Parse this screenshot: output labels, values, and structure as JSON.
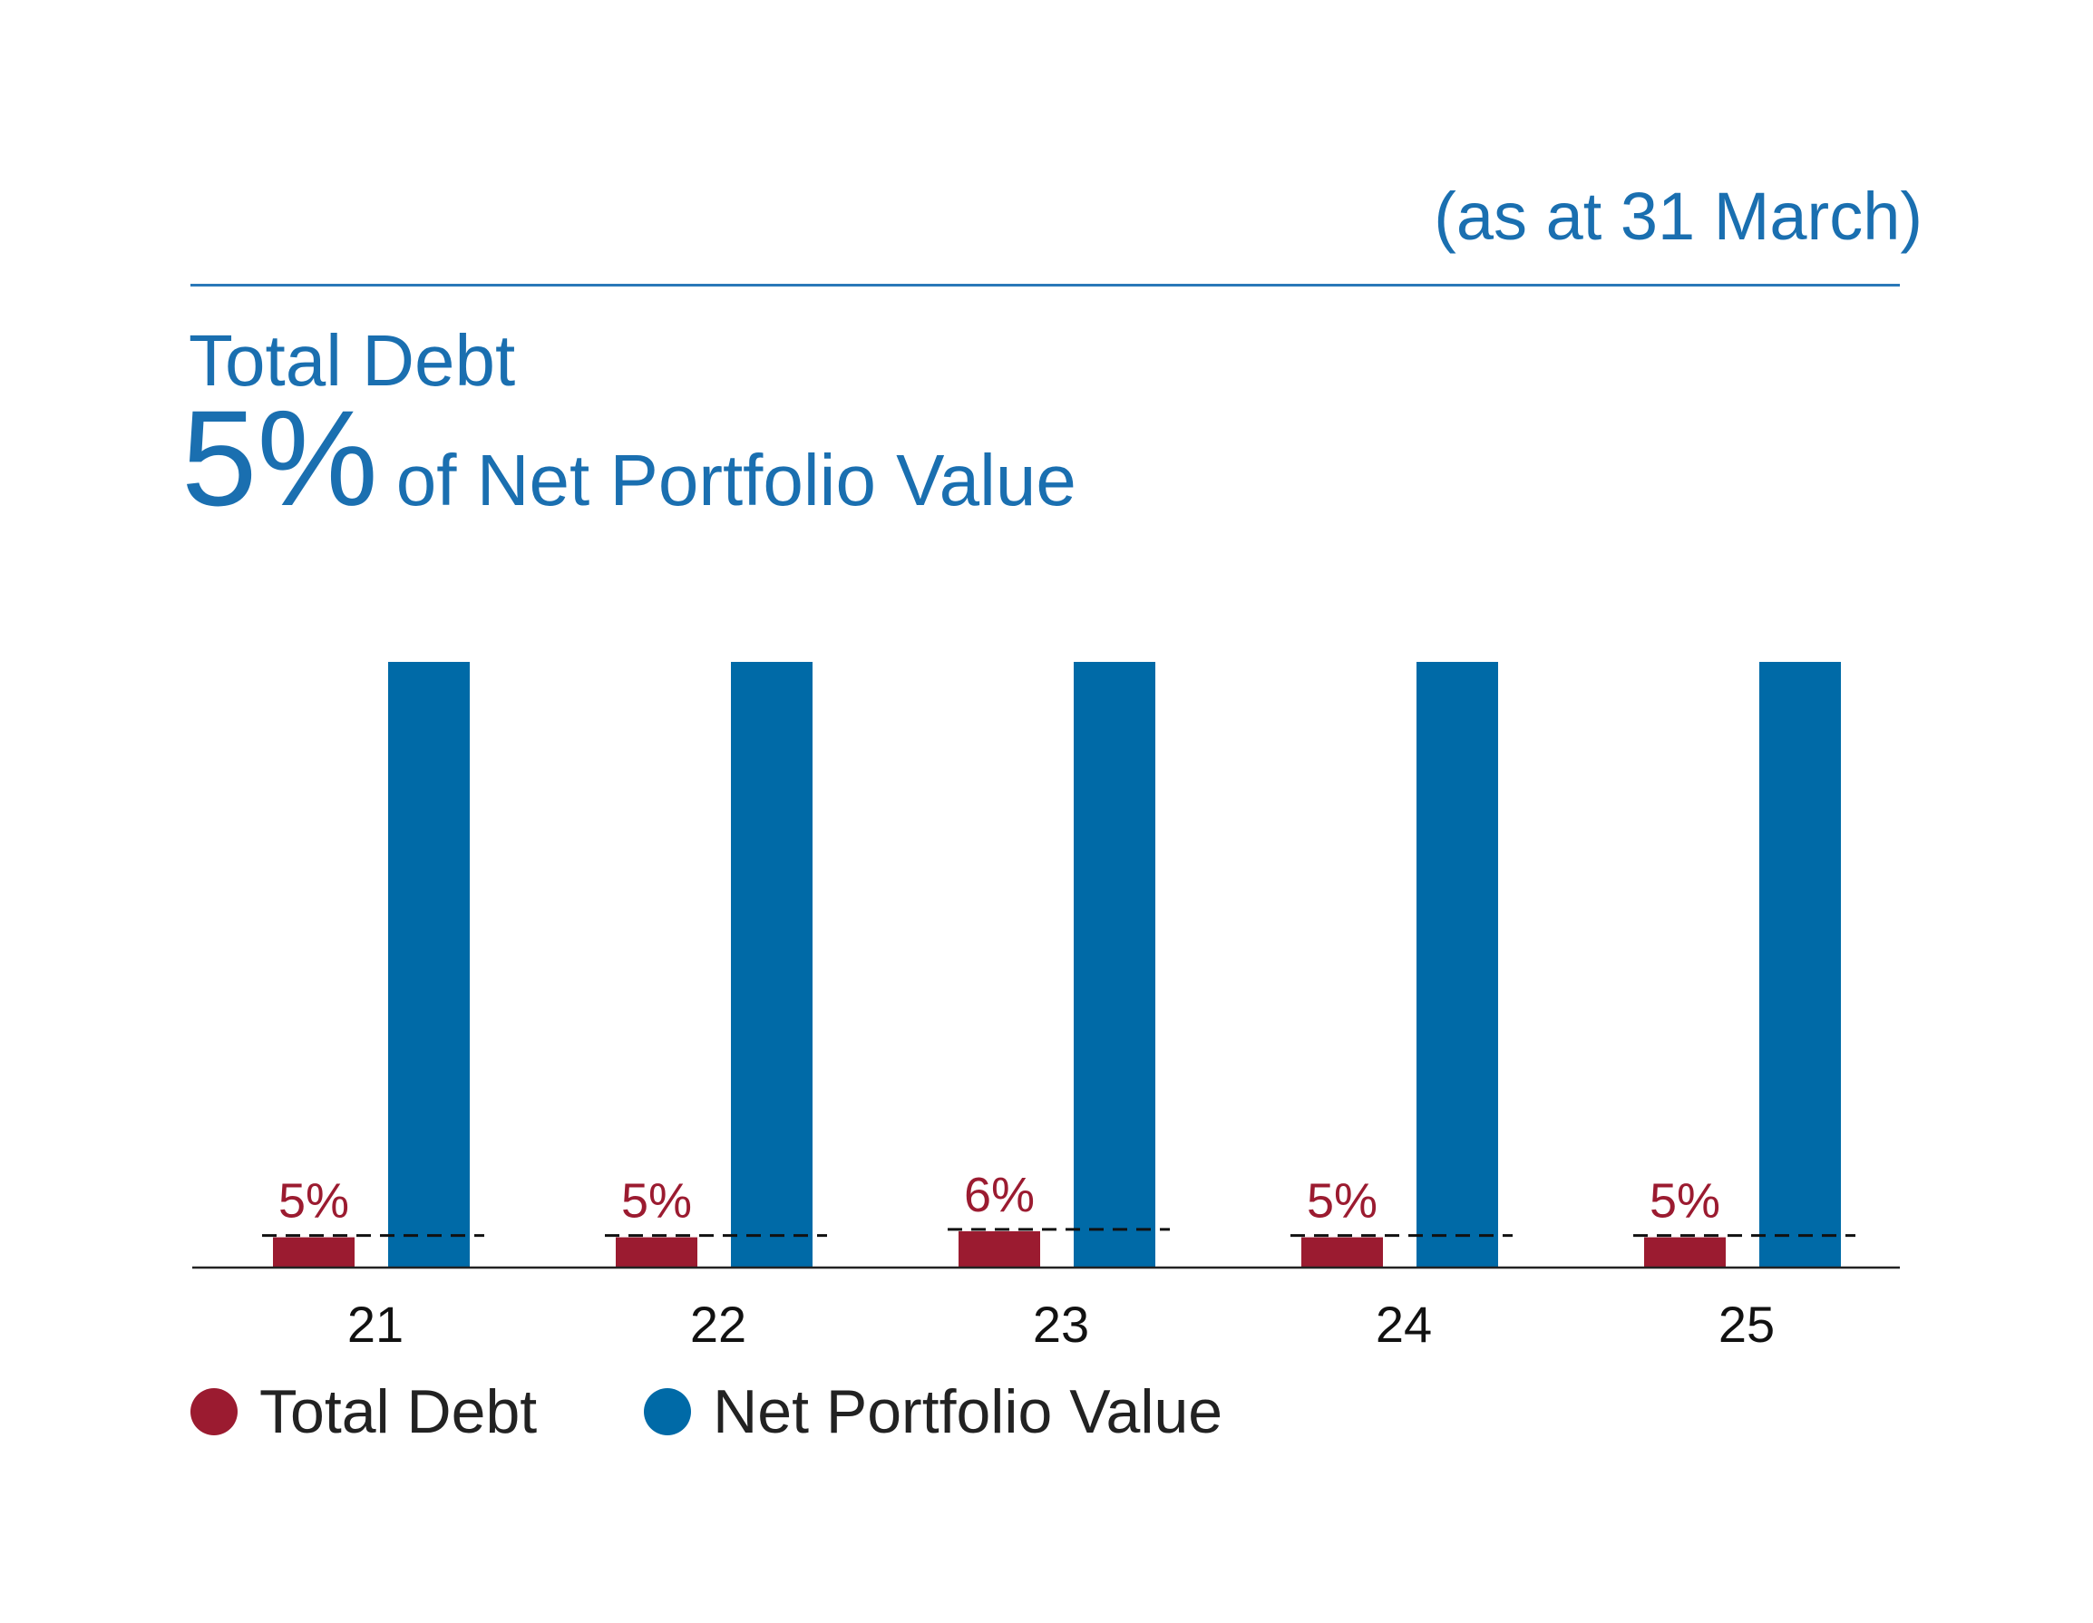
{
  "header": {
    "as_at": "(as at 31 March)",
    "metric_label": "Total Debt",
    "metric_value": "5%",
    "metric_suffix": "of Net Portfolio Value"
  },
  "colors": {
    "total_debt": "#9b1b30",
    "net_portfolio_value": "#006aa7",
    "accent": "#1a6fb0"
  },
  "legend": {
    "items": [
      {
        "label": "Total Debt",
        "color": "#9b1b30"
      },
      {
        "label": "Net Portfolio Value",
        "color": "#006aa7"
      }
    ]
  },
  "chart_data": {
    "type": "bar",
    "categories": [
      "21",
      "22",
      "23",
      "24",
      "25"
    ],
    "series": [
      {
        "name": "Total Debt",
        "values": [
          5,
          5,
          6,
          5,
          5
        ],
        "labels": [
          "5%",
          "5%",
          "6%",
          "5%",
          "5%"
        ]
      },
      {
        "name": "Net Portfolio Value",
        "values": [
          100,
          100,
          100,
          100,
          100
        ]
      }
    ],
    "ylim": [
      0,
      100
    ],
    "grid": false,
    "legend_position": "bottom-left",
    "reference_lines": "dashed line at each Total Debt level"
  }
}
